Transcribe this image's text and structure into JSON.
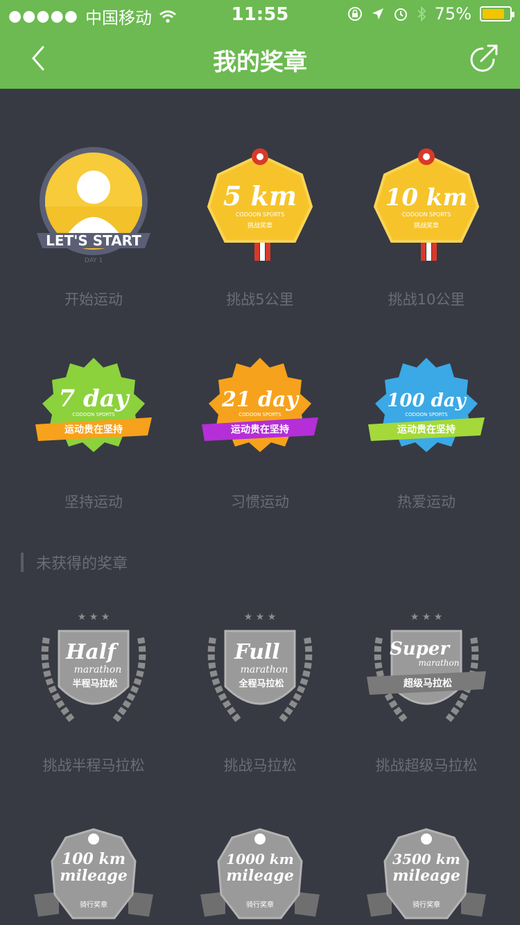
{
  "status_bar": {
    "signal_dots": "●●●●●",
    "carrier": "中国移动",
    "time": "11:55",
    "battery": "75%"
  },
  "header": {
    "title": "我的奖章"
  },
  "earned": [
    {
      "name": "开始运动",
      "icon": "lets-start-badge",
      "badge_text": "LET'S START",
      "badge_sub": "DAY 1"
    },
    {
      "name": "挑战5公里",
      "icon": "5km-badge",
      "badge_text": "5 km",
      "badge_sub": "CODOON SPORTS",
      "badge_tag": "挑战奖章"
    },
    {
      "name": "挑战10公里",
      "icon": "10km-badge",
      "badge_text": "10 km",
      "badge_sub": "CODOON SPORTS",
      "badge_tag": "挑战奖章"
    },
    {
      "name": "坚持运动",
      "icon": "7day-badge",
      "badge_text": "7 day",
      "badge_sub": "CODOON SPORTS",
      "ribbon": "运动贵在坚持"
    },
    {
      "name": "习惯运动",
      "icon": "21day-badge",
      "badge_text": "21 day",
      "badge_sub": "CODOON SPORTS",
      "ribbon": "运动贵在坚持"
    },
    {
      "name": "热爱运动",
      "icon": "100day-badge",
      "badge_text": "100 day",
      "badge_sub": "CODOON SPORTS",
      "ribbon": "运动贵在坚持"
    }
  ],
  "unearned_section": {
    "title": "未获得的奖章"
  },
  "unearned": [
    {
      "name": "挑战半程马拉松",
      "icon": "half-marathon-badge",
      "badge_text": "Half",
      "badge_sub": "marathon",
      "badge_cn": "半程马拉松"
    },
    {
      "name": "挑战马拉松",
      "icon": "full-marathon-badge",
      "badge_text": "Full",
      "badge_sub": "marathon",
      "badge_cn": "全程马拉松"
    },
    {
      "name": "挑战超级马拉松",
      "icon": "super-marathon-badge",
      "badge_text": "Super",
      "badge_sub": "marathon",
      "badge_cn": "超级马拉松"
    },
    {
      "name": "",
      "icon": "100km-mileage-badge",
      "badge_text": "100 km",
      "badge_sub": "mileage",
      "badge_tag": "骑行奖章"
    },
    {
      "name": "",
      "icon": "1000km-mileage-badge",
      "badge_text": "1000 km",
      "badge_sub": "mileage",
      "badge_tag": "骑行奖章"
    },
    {
      "name": "",
      "icon": "3500km-mileage-badge",
      "badge_text": "3500 km",
      "badge_sub": "mileage",
      "badge_tag": "骑行奖章"
    }
  ],
  "colors": {
    "brand_green": "#6cba51",
    "background": "#373a43",
    "label_gray": "#6a6d76",
    "gold": "#f6c42a",
    "green_day": "#8cd23c",
    "orange_day": "#f7a21c",
    "blue_day": "#3ba9e6",
    "locked_gray": "#8c8c8c"
  }
}
